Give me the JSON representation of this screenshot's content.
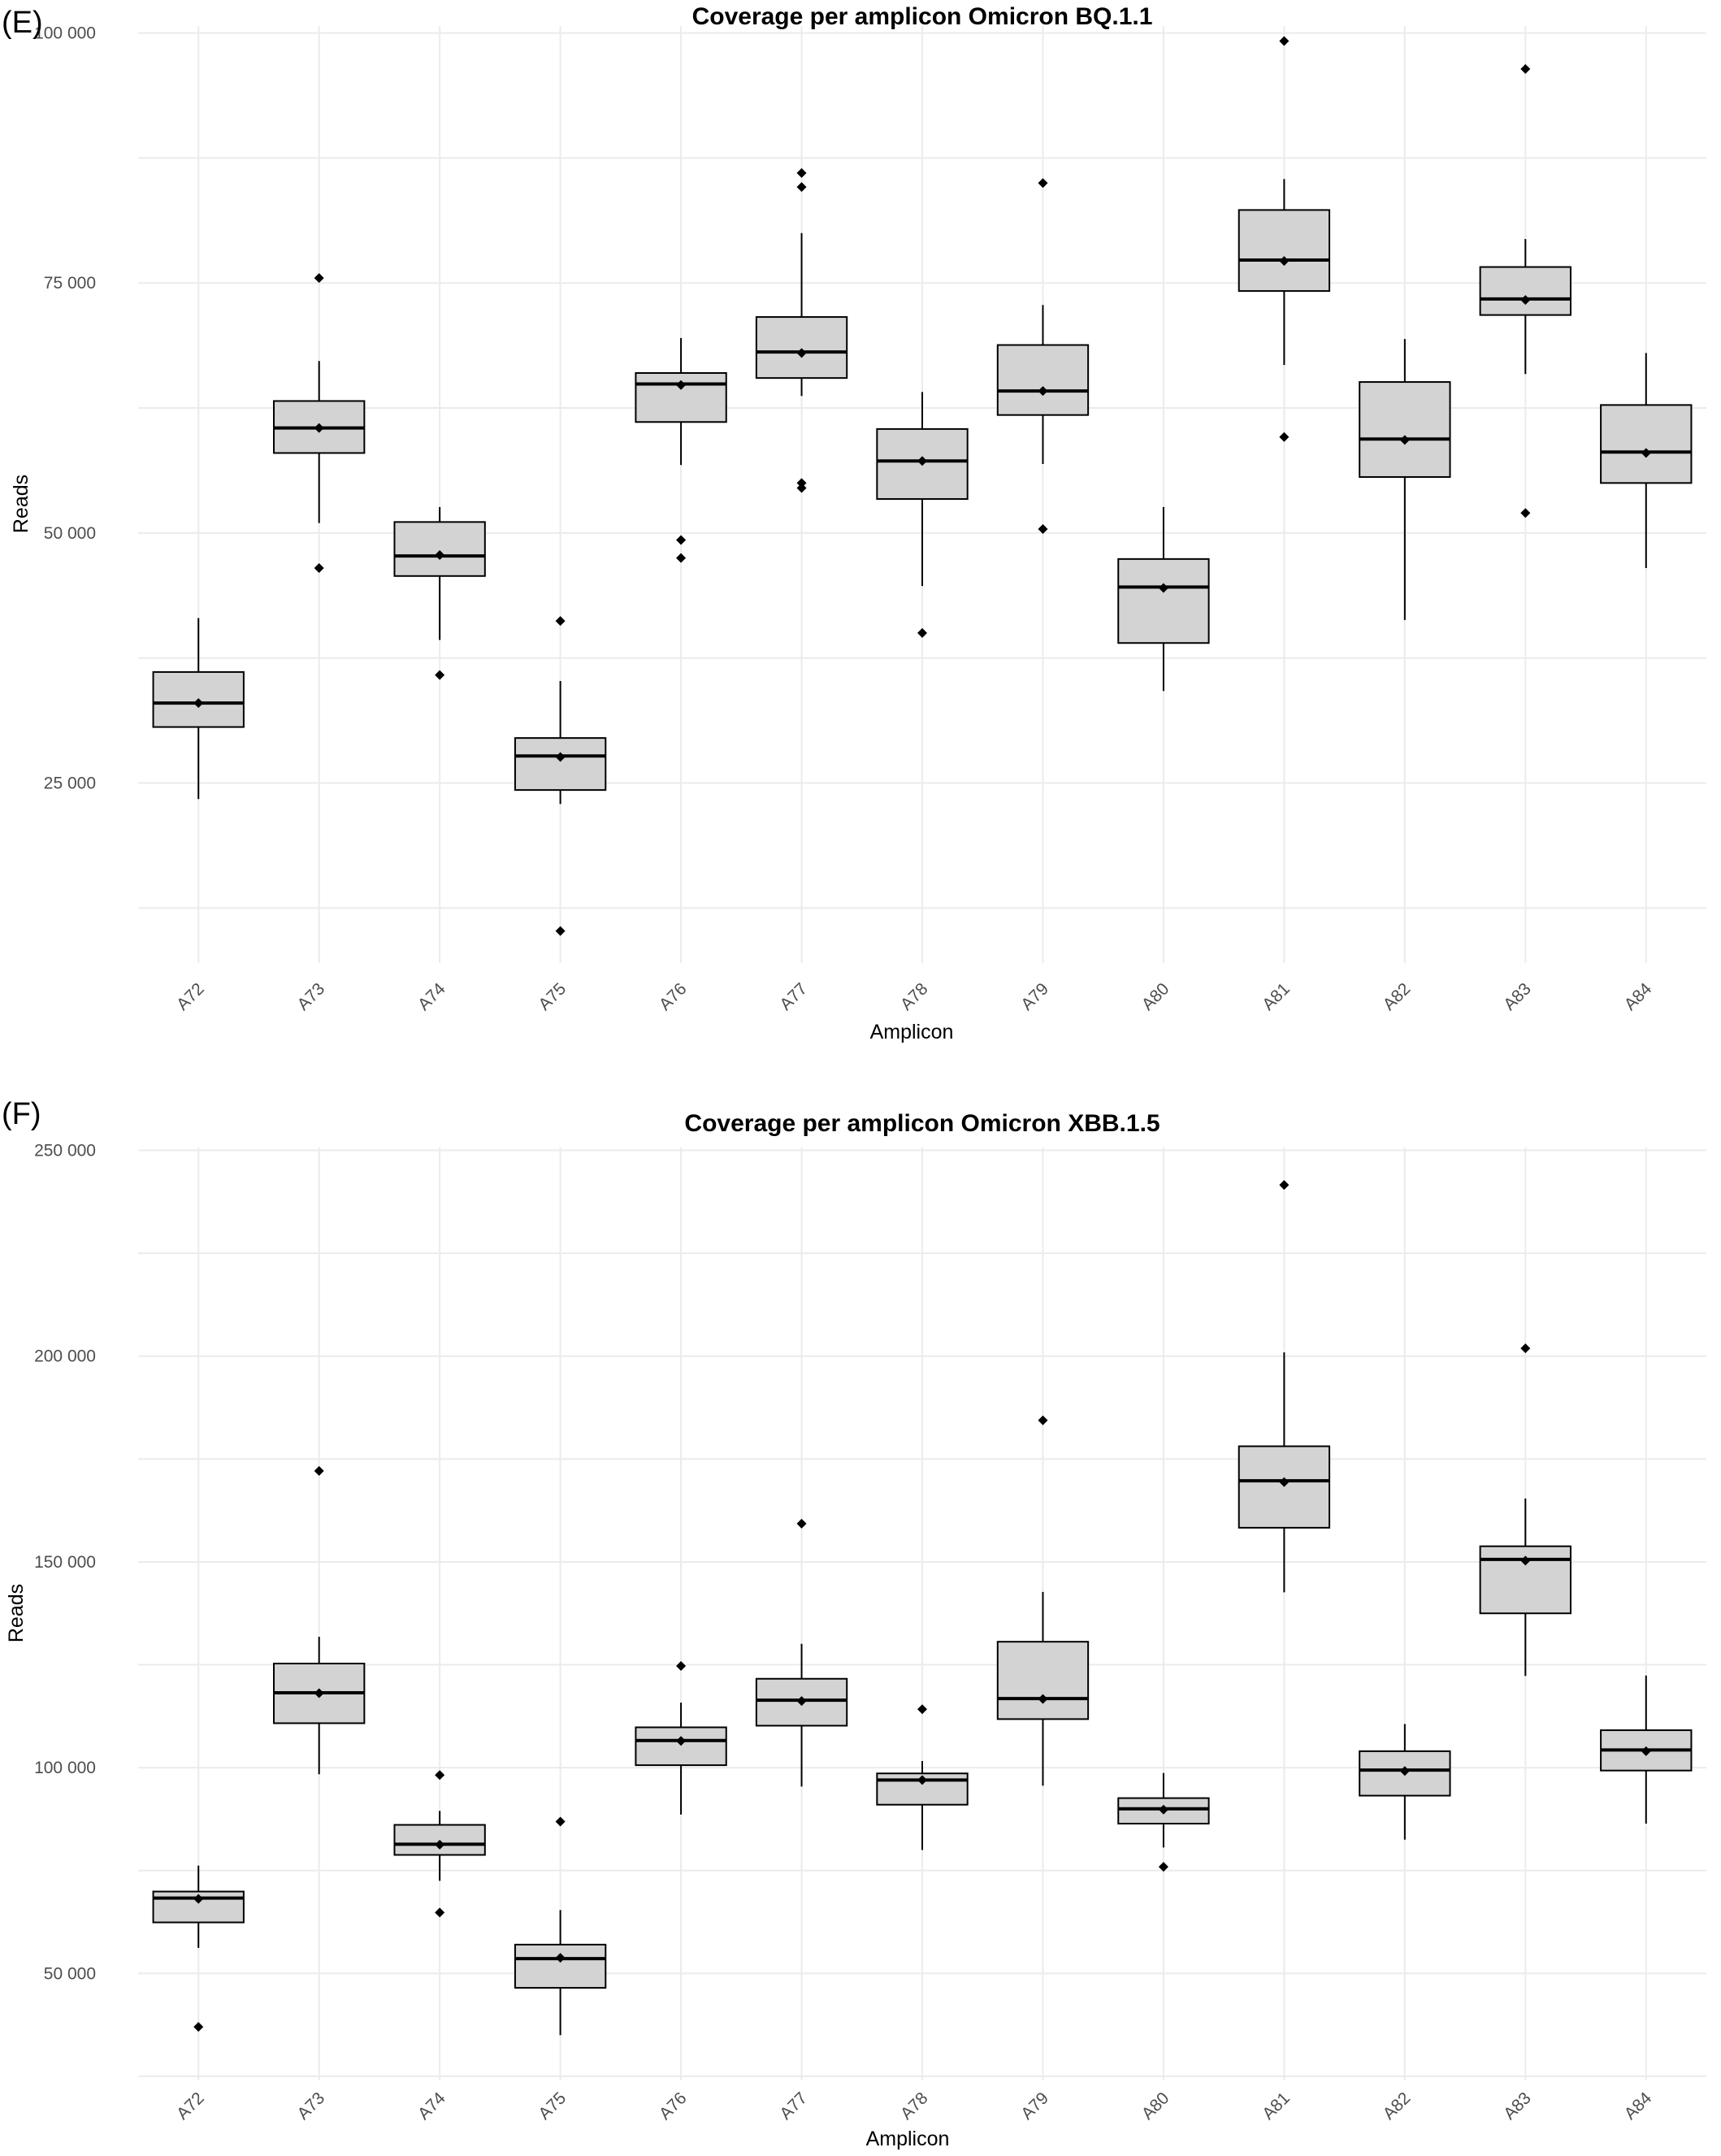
{
  "chart_data": [
    {
      "type": "box",
      "panel_label": "(E)",
      "title": "Coverage per amplicon Omicron BQ.1.1",
      "xlabel": "Amplicon",
      "ylabel": "Reads",
      "ylim": [
        7000,
        100700
      ],
      "yticks": [
        25000,
        50000,
        75000,
        100000
      ],
      "ytick_labels": [
        "25 000",
        "50 000",
        "75 000",
        "100 000"
      ],
      "grid": true,
      "categories": [
        "A72",
        "A73",
        "A74",
        "A75",
        "A76",
        "A77",
        "A78",
        "A79",
        "A80",
        "A81",
        "A82",
        "A83",
        "A84"
      ],
      "boxes": [
        {
          "whisker_low": 23400,
          "q1": 30600,
          "median": 33000,
          "q3": 36100,
          "whisker_high": 41500,
          "mean": 33000,
          "outliers": []
        },
        {
          "whisker_low": 51000,
          "q1": 58000,
          "median": 60500,
          "q3": 63200,
          "whisker_high": 67200,
          "mean": 60500,
          "outliers": [
            75500,
            46500
          ]
        },
        {
          "whisker_low": 39300,
          "q1": 45700,
          "median": 47700,
          "q3": 51100,
          "whisker_high": 52600,
          "mean": 47800,
          "outliers": [
            35800
          ]
        },
        {
          "whisker_low": 22900,
          "q1": 24300,
          "median": 27700,
          "q3": 29500,
          "whisker_high": 35200,
          "mean": 27600,
          "outliers": [
            41200,
            10200
          ]
        },
        {
          "whisker_low": 56800,
          "q1": 61100,
          "median": 64900,
          "q3": 66000,
          "whisker_high": 69500,
          "mean": 64800,
          "outliers": [
            49300,
            47500
          ]
        },
        {
          "whisker_low": 63700,
          "q1": 65500,
          "median": 68100,
          "q3": 71600,
          "whisker_high": 80000,
          "mean": 68000,
          "outliers": [
            86000,
            84600,
            55000,
            54500
          ]
        },
        {
          "whisker_low": 44700,
          "q1": 53400,
          "median": 57200,
          "q3": 60400,
          "whisker_high": 64100,
          "mean": 57200,
          "outliers": [
            40000
          ]
        },
        {
          "whisker_low": 56900,
          "q1": 61800,
          "median": 64200,
          "q3": 68800,
          "whisker_high": 72800,
          "mean": 64200,
          "outliers": [
            85000,
            50400
          ]
        },
        {
          "whisker_low": 34200,
          "q1": 39000,
          "median": 44600,
          "q3": 47400,
          "whisker_high": 52600,
          "mean": 44500,
          "outliers": []
        },
        {
          "whisker_low": 66800,
          "q1": 74200,
          "median": 77300,
          "q3": 82300,
          "whisker_high": 85400,
          "mean": 77200,
          "outliers": [
            99200,
            59600
          ]
        },
        {
          "whisker_low": 41300,
          "q1": 55600,
          "median": 59400,
          "q3": 65100,
          "whisker_high": 69400,
          "mean": 59300,
          "outliers": []
        },
        {
          "whisker_low": 65900,
          "q1": 71800,
          "median": 73400,
          "q3": 76600,
          "whisker_high": 79400,
          "mean": 73300,
          "outliers": [
            96400,
            52000
          ]
        },
        {
          "whisker_low": 46500,
          "q1": 55000,
          "median": 58100,
          "q3": 62800,
          "whisker_high": 68000,
          "mean": 58000,
          "outliers": []
        }
      ]
    },
    {
      "type": "box",
      "panel_label": "(F)",
      "title": "Coverage per amplicon Omicron XBB.1.5",
      "xlabel": "Amplicon",
      "ylabel": "Reads",
      "ylim": [
        24000,
        250700
      ],
      "yticks": [
        50000,
        100000,
        150000,
        200000,
        250000
      ],
      "ytick_labels": [
        "50 000",
        "100 000",
        "150 000",
        "200 000",
        "250 000"
      ],
      "grid": true,
      "categories": [
        "A72",
        "A73",
        "A74",
        "A75",
        "A76",
        "A77",
        "A78",
        "A79",
        "A80",
        "A81",
        "A82",
        "A83",
        "A84"
      ],
      "boxes": [
        {
          "whisker_low": 56200,
          "q1": 62400,
          "median": 68300,
          "q3": 69900,
          "whisker_high": 76200,
          "mean": 68100,
          "outliers": [
            37000
          ]
        },
        {
          "whisker_low": 98400,
          "q1": 110800,
          "median": 118200,
          "q3": 125300,
          "whisker_high": 131800,
          "mean": 118100,
          "outliers": [
            172100
          ]
        },
        {
          "whisker_low": 72500,
          "q1": 78800,
          "median": 81400,
          "q3": 86100,
          "whisker_high": 89500,
          "mean": 81300,
          "outliers": [
            98200,
            64800
          ]
        },
        {
          "whisker_low": 35000,
          "q1": 46500,
          "median": 53600,
          "q3": 57000,
          "whisker_high": 65400,
          "mean": 53800,
          "outliers": [
            86900
          ]
        },
        {
          "whisker_low": 88600,
          "q1": 100600,
          "median": 106600,
          "q3": 109800,
          "whisker_high": 115800,
          "mean": 106500,
          "outliers": [
            124700
          ]
        },
        {
          "whisker_low": 95400,
          "q1": 110200,
          "median": 116400,
          "q3": 121600,
          "whisker_high": 130100,
          "mean": 116200,
          "outliers": [
            159300
          ]
        },
        {
          "whisker_low": 80000,
          "q1": 91000,
          "median": 97000,
          "q3": 98600,
          "whisker_high": 101600,
          "mean": 97000,
          "outliers": [
            114200
          ]
        },
        {
          "whisker_low": 95600,
          "q1": 111800,
          "median": 116800,
          "q3": 130600,
          "whisker_high": 142700,
          "mean": 116700,
          "outliers": [
            184400
          ]
        },
        {
          "whisker_low": 80600,
          "q1": 86400,
          "median": 90000,
          "q3": 92600,
          "whisker_high": 98700,
          "mean": 89800,
          "outliers": [
            75900
          ]
        },
        {
          "whisker_low": 142600,
          "q1": 158300,
          "median": 169700,
          "q3": 178100,
          "whisker_high": 200900,
          "mean": 169400,
          "outliers": [
            241600
          ]
        },
        {
          "whisker_low": 82500,
          "q1": 93200,
          "median": 99400,
          "q3": 104000,
          "whisker_high": 110600,
          "mean": 99200,
          "outliers": []
        },
        {
          "whisker_low": 122300,
          "q1": 137500,
          "median": 150600,
          "q3": 153800,
          "whisker_high": 165400,
          "mean": 150300,
          "outliers": [
            201900
          ]
        },
        {
          "whisker_low": 86400,
          "q1": 99300,
          "median": 104300,
          "q3": 109100,
          "whisker_high": 122400,
          "mean": 104000,
          "outliers": []
        }
      ]
    }
  ]
}
